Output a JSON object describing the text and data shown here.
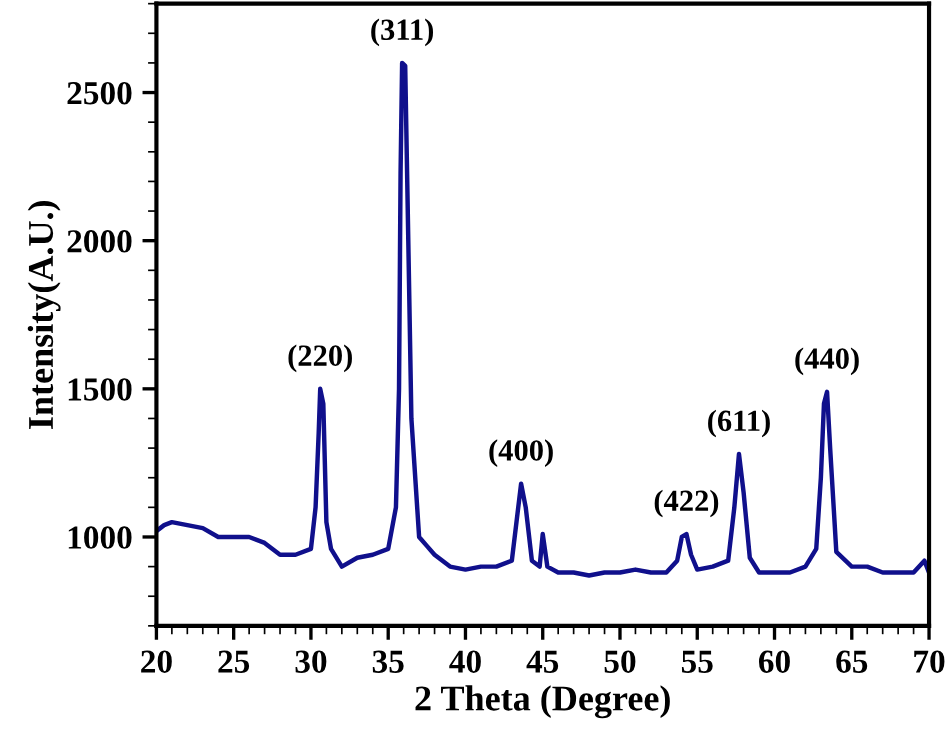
{
  "chart_data": {
    "type": "line",
    "xlabel": "2 Theta (Degree)",
    "ylabel": "Intensity(A.U.)",
    "xlim": [
      20,
      70
    ],
    "ylim": [
      700,
      2800
    ],
    "xticks": [
      20,
      25,
      30,
      35,
      40,
      45,
      50,
      55,
      60,
      65,
      70
    ],
    "yticks": [
      1000,
      1500,
      2000,
      2500
    ],
    "grid": false,
    "legend": false,
    "marker": "none",
    "line_style": "solid",
    "series": [
      {
        "color": "#10108c",
        "x": [
          20,
          20.5,
          21,
          22,
          23,
          24,
          25,
          26,
          27,
          28,
          29,
          30,
          30.3,
          30.5,
          30.6,
          30.8,
          31,
          31.3,
          32,
          33,
          34,
          35,
          35.5,
          35.7,
          35.8,
          35.9,
          36.1,
          36.3,
          36.5,
          37,
          37.5,
          38,
          39,
          40,
          41,
          42,
          43,
          43.3,
          43.6,
          43.9,
          44.3,
          44.8,
          45,
          45.3,
          46,
          47,
          48,
          49,
          50,
          51,
          52,
          53,
          53.7,
          54,
          54.3,
          54.6,
          55,
          56,
          57,
          57.4,
          57.7,
          58,
          58.4,
          59,
          60,
          61,
          62,
          62.7,
          63,
          63.2,
          63.4,
          63.6,
          64,
          65,
          66,
          67,
          68,
          69,
          69.7,
          70
        ],
        "values": [
          1020,
          1040,
          1050,
          1040,
          1030,
          1000,
          1000,
          1000,
          980,
          940,
          940,
          960,
          1100,
          1350,
          1500,
          1450,
          1050,
          960,
          900,
          930,
          940,
          960,
          1100,
          1500,
          2230,
          2600,
          2590,
          2000,
          1400,
          1000,
          970,
          940,
          900,
          890,
          900,
          900,
          920,
          1050,
          1180,
          1100,
          920,
          900,
          1010,
          900,
          880,
          880,
          870,
          880,
          880,
          890,
          880,
          880,
          920,
          1000,
          1010,
          940,
          890,
          900,
          920,
          1100,
          1280,
          1150,
          930,
          880,
          880,
          880,
          900,
          960,
          1200,
          1450,
          1490,
          1300,
          950,
          900,
          900,
          880,
          880,
          880,
          920,
          880
        ]
      }
    ],
    "annotations": [
      {
        "text": "(220)",
        "x": 30.6,
        "y": 1500
      },
      {
        "text": "(311)",
        "x": 35.9,
        "y": 2600
      },
      {
        "text": "(400)",
        "x": 43.6,
        "y": 1180
      },
      {
        "text": "(422)",
        "x": 54.3,
        "y": 1010
      },
      {
        "text": "(611)",
        "x": 57.7,
        "y": 1280
      },
      {
        "text": "(440)",
        "x": 63.4,
        "y": 1490
      }
    ]
  }
}
